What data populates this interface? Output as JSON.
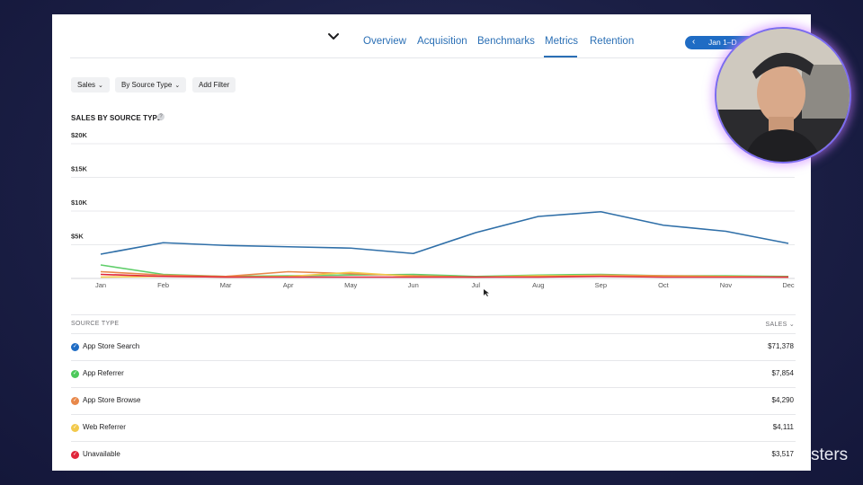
{
  "nav": {
    "tabs": [
      {
        "label": "Overview",
        "active": false
      },
      {
        "label": "Acquisition",
        "active": false
      },
      {
        "label": "Benchmarks",
        "active": false
      },
      {
        "label": "Metrics",
        "active": true
      },
      {
        "label": "Retention",
        "active": false
      }
    ],
    "date_range": "Jan 1–D"
  },
  "filters": [
    {
      "label": "Sales"
    },
    {
      "label": "By Source Type"
    },
    {
      "label": "Add Filter"
    }
  ],
  "section_title": "SALES BY SOURCE TYPE",
  "help_glyph": "?",
  "chart_data": {
    "type": "line",
    "title": "SALES BY SOURCE TYPE",
    "categories": [
      "Jan",
      "Feb",
      "Mar",
      "Apr",
      "May",
      "Jun",
      "Jul",
      "Aug",
      "Sep",
      "Oct",
      "Nov",
      "Dec"
    ],
    "y_ticks": [
      "$5K",
      "$10K",
      "$15K",
      "$20K"
    ],
    "ylim": [
      0,
      20000
    ],
    "grid": true,
    "series": [
      {
        "name": "App Store Search",
        "color": "#2f6fa8",
        "values": [
          3600,
          5300,
          4900,
          4700,
          4500,
          3700,
          6800,
          9200,
          9900,
          7900,
          7000,
          5200
        ]
      },
      {
        "name": "App Referrer",
        "color": "#5fce6a",
        "values": [
          2000,
          600,
          300,
          400,
          500,
          600,
          300,
          500,
          600,
          400,
          400,
          300
        ]
      },
      {
        "name": "App Store Browse",
        "color": "#e8884a",
        "values": [
          1000,
          500,
          300,
          1000,
          700,
          400,
          200,
          300,
          500,
          400,
          300,
          200
        ]
      },
      {
        "name": "Web Referrer",
        "color": "#f2c94c",
        "values": [
          200,
          300,
          200,
          300,
          900,
          300,
          200,
          400,
          400,
          300,
          300,
          200
        ]
      },
      {
        "name": "Unavailable",
        "color": "#e0263b",
        "values": [
          600,
          300,
          200,
          200,
          200,
          200,
          200,
          200,
          300,
          200,
          200,
          200
        ]
      }
    ]
  },
  "table": {
    "col_source": "SOURCE TYPE",
    "col_sales": "SALES",
    "sort_glyph": "⌄",
    "rows": [
      {
        "name": "App Store Search",
        "value": "$71,378",
        "color": "#1f6cc4"
      },
      {
        "name": "App Referrer",
        "value": "$7,854",
        "color": "#4cc95b"
      },
      {
        "name": "App Store Browse",
        "value": "$4,290",
        "color": "#e8884a"
      },
      {
        "name": "Web Referrer",
        "value": "$4,111",
        "color": "#f2c94c"
      },
      {
        "name": "Unavailable",
        "value": "$3,517",
        "color": "#e0263b"
      }
    ]
  },
  "brand_text": "sters"
}
